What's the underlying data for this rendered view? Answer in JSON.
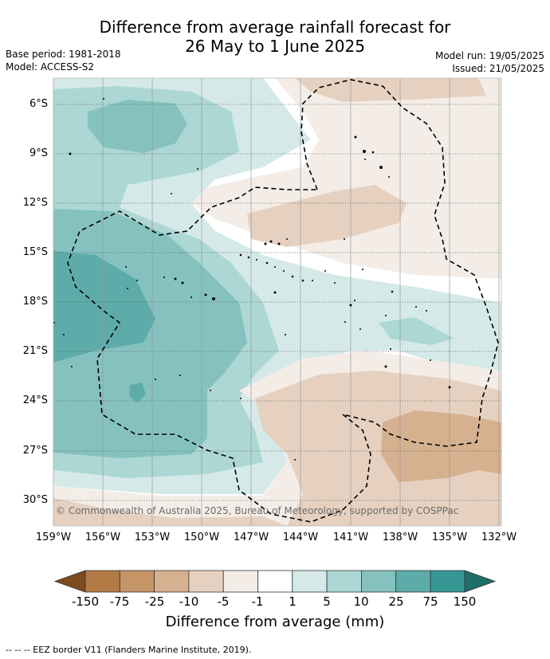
{
  "title": {
    "line1": "Difference from average rainfall forecast for",
    "line2": "26 May to 1 June 2025"
  },
  "meta": {
    "base_period": "Base period: 1981-2018",
    "model": "Model: ACCESS-S2",
    "model_run": "Model run: 19/05/2025",
    "issued": "Issued: 21/05/2025"
  },
  "map": {
    "lat_labels": [
      "6°S",
      "9°S",
      "12°S",
      "15°S",
      "18°S",
      "21°S",
      "24°S",
      "27°S",
      "30°S"
    ],
    "lon_labels": [
      "159°W",
      "156°W",
      "153°W",
      "150°W",
      "147°W",
      "144°W",
      "141°W",
      "138°W",
      "135°W",
      "132°W"
    ],
    "credit": "© Commonwealth of Australia 2025, Bureau of Meteorology, supported by COSPPac"
  },
  "colorbar": {
    "title": "Difference from average (mm)",
    "labels": [
      "-150",
      "-75",
      "-25",
      "-10",
      "-5",
      "-1",
      "1",
      "5",
      "10",
      "25",
      "75",
      "150"
    ],
    "colors": {
      "below_-150": "#7e4a1f",
      "-150_-75": "#b27a45",
      "-75_-25": "#c59467",
      "-25_-10": "#d6b190",
      "-10_-5": "#e6d1c0",
      "-5_-1": "#f4ede7",
      "-1_1": "#ffffff",
      "1_5": "#d5eae8",
      "5_10": "#acd7d4",
      "10_25": "#85c2bf",
      "25_75": "#5eaca9",
      "75_150": "#369794",
      "above_150": "#1e6e6b"
    }
  },
  "footnote": "-- -- -- EEZ border V11 (Flanders Marine Institute, 2019)."
}
